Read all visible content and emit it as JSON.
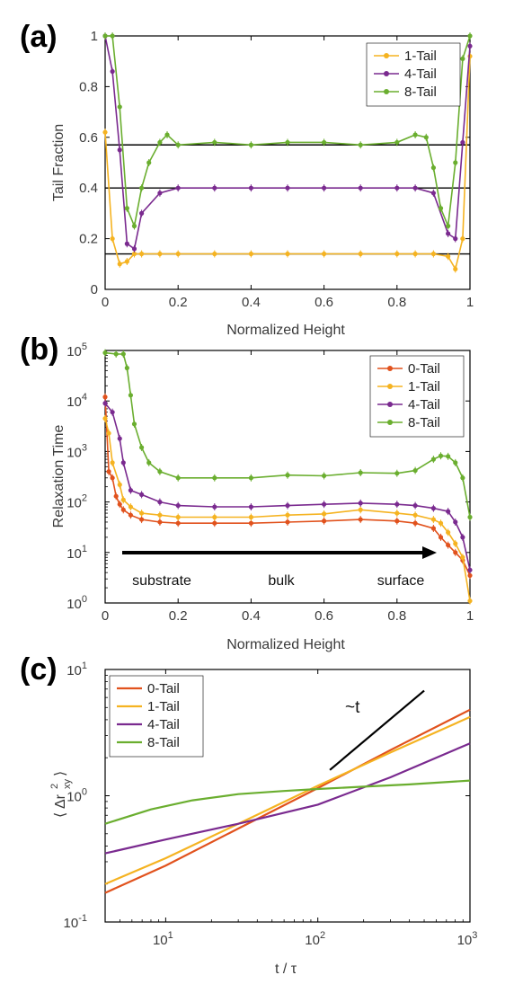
{
  "panels": [
    {
      "id": "a",
      "letter": "(a)",
      "type": "line",
      "xlabel": "Normalized Height",
      "ylabel": "Tail Fraction",
      "xlim": [
        0,
        1
      ],
      "ylim": [
        0,
        1
      ],
      "xscale": "linear",
      "yscale": "linear",
      "xticks": [
        0,
        0.2,
        0.4,
        0.6,
        0.8,
        1
      ],
      "xtick_labels": [
        "0",
        "0.2",
        "0.4",
        "0.6",
        "0.8",
        "1"
      ],
      "yticks": [
        0,
        0.2,
        0.4,
        0.6,
        0.8,
        1
      ],
      "ytick_labels": [
        "0",
        "0.2",
        "0.4",
        "0.6",
        "0.8",
        "1"
      ],
      "legend": "top-right",
      "hlines": [
        0.14,
        0.4,
        0.57
      ],
      "series": [
        {
          "name": "1-Tail",
          "color": "#F5B321",
          "x": [
            0,
            0.02,
            0.04,
            0.06,
            0.08,
            0.1,
            0.15,
            0.2,
            0.3,
            0.4,
            0.5,
            0.6,
            0.7,
            0.8,
            0.85,
            0.9,
            0.94,
            0.96,
            0.98,
            1.0
          ],
          "y": [
            0.62,
            0.2,
            0.1,
            0.11,
            0.14,
            0.14,
            0.14,
            0.14,
            0.14,
            0.14,
            0.14,
            0.14,
            0.14,
            0.14,
            0.14,
            0.14,
            0.13,
            0.08,
            0.2,
            0.92
          ]
        },
        {
          "name": "4-Tail",
          "color": "#7A2A8F",
          "x": [
            0,
            0.02,
            0.04,
            0.06,
            0.08,
            0.1,
            0.15,
            0.2,
            0.3,
            0.4,
            0.5,
            0.6,
            0.7,
            0.8,
            0.85,
            0.9,
            0.94,
            0.96,
            0.98,
            1.0
          ],
          "y": [
            1.0,
            0.86,
            0.55,
            0.18,
            0.16,
            0.3,
            0.38,
            0.4,
            0.4,
            0.4,
            0.4,
            0.4,
            0.4,
            0.4,
            0.4,
            0.38,
            0.22,
            0.2,
            0.58,
            0.96
          ]
        },
        {
          "name": "8-Tail",
          "color": "#6AAE2F",
          "x": [
            0,
            0.02,
            0.04,
            0.06,
            0.08,
            0.1,
            0.12,
            0.15,
            0.17,
            0.2,
            0.3,
            0.4,
            0.5,
            0.6,
            0.7,
            0.8,
            0.85,
            0.88,
            0.9,
            0.92,
            0.94,
            0.96,
            0.98,
            1.0
          ],
          "y": [
            1.0,
            1.0,
            0.72,
            0.32,
            0.25,
            0.4,
            0.5,
            0.58,
            0.61,
            0.57,
            0.58,
            0.57,
            0.58,
            0.58,
            0.57,
            0.58,
            0.61,
            0.6,
            0.48,
            0.32,
            0.25,
            0.5,
            0.91,
            1.0
          ]
        }
      ]
    },
    {
      "id": "b",
      "letter": "(b)",
      "type": "line",
      "xlabel": "Normalized Height",
      "ylabel": "Relaxation Time",
      "xlim": [
        0,
        1
      ],
      "ylim": [
        1,
        100000
      ],
      "xscale": "linear",
      "yscale": "log",
      "xticks": [
        0,
        0.2,
        0.4,
        0.6,
        0.8,
        1
      ],
      "xtick_labels": [
        "0",
        "0.2",
        "0.4",
        "0.6",
        "0.8",
        "1"
      ],
      "yticks": [
        1,
        10,
        100,
        1000,
        10000,
        100000
      ],
      "ytick_base": [
        "10",
        "10",
        "10",
        "10",
        "10",
        "10"
      ],
      "ytick_exp": [
        "0",
        "1",
        "2",
        "3",
        "4",
        "5"
      ],
      "legend": "top-right",
      "annotations": [
        "substrate",
        "bulk",
        "surface"
      ],
      "series": [
        {
          "name": "0-Tail",
          "color": "#E1521D",
          "x": [
            0,
            0.01,
            0.02,
            0.03,
            0.04,
            0.05,
            0.07,
            0.1,
            0.15,
            0.2,
            0.3,
            0.4,
            0.5,
            0.6,
            0.7,
            0.8,
            0.85,
            0.9,
            0.92,
            0.94,
            0.96,
            0.98,
            1.0
          ],
          "y": [
            12000,
            400,
            300,
            130,
            90,
            70,
            55,
            45,
            40,
            38,
            38,
            38,
            40,
            42,
            45,
            42,
            38,
            30,
            20,
            14,
            10,
            7,
            3.5
          ]
        },
        {
          "name": "1-Tail",
          "color": "#F5B321",
          "x": [
            0,
            0.01,
            0.02,
            0.04,
            0.05,
            0.07,
            0.1,
            0.15,
            0.2,
            0.3,
            0.4,
            0.5,
            0.6,
            0.7,
            0.8,
            0.85,
            0.9,
            0.92,
            0.94,
            0.96,
            0.98,
            1.0
          ],
          "y": [
            4500,
            2300,
            600,
            220,
            110,
            80,
            60,
            55,
            50,
            50,
            50,
            55,
            58,
            70,
            60,
            55,
            45,
            38,
            25,
            15,
            8,
            1.1
          ]
        },
        {
          "name": "4-Tail",
          "color": "#7A2A8F",
          "x": [
            0,
            0.02,
            0.04,
            0.05,
            0.07,
            0.1,
            0.15,
            0.2,
            0.3,
            0.4,
            0.5,
            0.6,
            0.7,
            0.8,
            0.85,
            0.9,
            0.94,
            0.96,
            0.98,
            1.0
          ],
          "y": [
            9000,
            6000,
            1800,
            600,
            170,
            140,
            100,
            85,
            80,
            80,
            85,
            90,
            95,
            90,
            85,
            75,
            65,
            40,
            20,
            4.5
          ]
        },
        {
          "name": "8-Tail",
          "color": "#6AAE2F",
          "x": [
            0,
            0.03,
            0.05,
            0.06,
            0.07,
            0.08,
            0.1,
            0.12,
            0.15,
            0.2,
            0.3,
            0.4,
            0.5,
            0.6,
            0.7,
            0.8,
            0.85,
            0.9,
            0.92,
            0.94,
            0.96,
            0.98,
            1.0
          ],
          "y": [
            90000,
            85000,
            85000,
            45000,
            13000,
            3500,
            1200,
            600,
            400,
            300,
            300,
            300,
            340,
            330,
            380,
            370,
            420,
            700,
            820,
            800,
            600,
            300,
            50
          ]
        }
      ]
    },
    {
      "id": "c",
      "letter": "(c)",
      "type": "line",
      "xlabel": "t / τ",
      "ylabel_pieces": {
        "open": "⟨",
        "delta": "Δr",
        "sup": "2",
        "sub": "xy",
        "close": "⟩"
      },
      "xlim": [
        4,
        1000
      ],
      "ylim": [
        0.1,
        10
      ],
      "xscale": "log",
      "yscale": "log",
      "xticks": [
        10,
        100,
        1000
      ],
      "xtick_base": [
        "10",
        "10",
        "10"
      ],
      "xtick_exp": [
        "1",
        "2",
        "3"
      ],
      "yticks": [
        0.1,
        1,
        10
      ],
      "ytick_base": [
        "10",
        "10",
        "10"
      ],
      "ytick_exp": [
        "-1",
        "0",
        "1"
      ],
      "legend": "top-left",
      "slope_label": "~t",
      "slope_line": {
        "x": [
          120,
          500
        ],
        "y": [
          1.6,
          6.8
        ]
      },
      "series": [
        {
          "name": "0-Tail",
          "color": "#E1521D",
          "x": [
            4,
            10,
            30,
            100,
            300,
            1000
          ],
          "y": [
            0.17,
            0.28,
            0.55,
            1.15,
            2.3,
            4.8
          ]
        },
        {
          "name": "1-Tail",
          "color": "#F5B321",
          "x": [
            4,
            10,
            30,
            100,
            300,
            1000
          ],
          "y": [
            0.2,
            0.32,
            0.6,
            1.2,
            2.2,
            4.2
          ]
        },
        {
          "name": "4-Tail",
          "color": "#7A2A8F",
          "x": [
            4,
            10,
            30,
            100,
            300,
            1000
          ],
          "y": [
            0.35,
            0.45,
            0.6,
            0.85,
            1.4,
            2.6
          ]
        },
        {
          "name": "8-Tail",
          "color": "#6AAE2F",
          "x": [
            4,
            8,
            15,
            30,
            60,
            100,
            200,
            400,
            1000
          ],
          "y": [
            0.6,
            0.78,
            0.92,
            1.03,
            1.09,
            1.13,
            1.18,
            1.23,
            1.32
          ]
        }
      ]
    }
  ],
  "chart_data": [
    {
      "type": "line",
      "title": "(a)",
      "xlabel": "Normalized Height",
      "ylabel": "Tail Fraction",
      "xlim": [
        0,
        1
      ],
      "ylim": [
        0,
        1
      ],
      "grid": false,
      "legend": "top-right",
      "reference_lines_y": [
        0.14,
        0.4,
        0.57
      ],
      "series": [
        {
          "name": "1-Tail",
          "x": [
            0,
            0.02,
            0.04,
            0.06,
            0.08,
            0.1,
            0.15,
            0.2,
            0.3,
            0.4,
            0.5,
            0.6,
            0.7,
            0.8,
            0.85,
            0.9,
            0.94,
            0.96,
            0.98,
            1.0
          ],
          "y": [
            0.62,
            0.2,
            0.1,
            0.11,
            0.14,
            0.14,
            0.14,
            0.14,
            0.14,
            0.14,
            0.14,
            0.14,
            0.14,
            0.14,
            0.14,
            0.14,
            0.13,
            0.08,
            0.2,
            0.92
          ]
        },
        {
          "name": "4-Tail",
          "x": [
            0,
            0.02,
            0.04,
            0.06,
            0.08,
            0.1,
            0.15,
            0.2,
            0.3,
            0.4,
            0.5,
            0.6,
            0.7,
            0.8,
            0.85,
            0.9,
            0.94,
            0.96,
            0.98,
            1.0
          ],
          "y": [
            1.0,
            0.86,
            0.55,
            0.18,
            0.16,
            0.3,
            0.38,
            0.4,
            0.4,
            0.4,
            0.4,
            0.4,
            0.4,
            0.4,
            0.4,
            0.38,
            0.22,
            0.2,
            0.58,
            0.96
          ]
        },
        {
          "name": "8-Tail",
          "x": [
            0,
            0.02,
            0.04,
            0.06,
            0.08,
            0.1,
            0.12,
            0.15,
            0.17,
            0.2,
            0.3,
            0.4,
            0.5,
            0.6,
            0.7,
            0.8,
            0.85,
            0.88,
            0.9,
            0.92,
            0.94,
            0.96,
            0.98,
            1.0
          ],
          "y": [
            1.0,
            1.0,
            0.72,
            0.32,
            0.25,
            0.4,
            0.5,
            0.58,
            0.61,
            0.57,
            0.58,
            0.57,
            0.58,
            0.58,
            0.57,
            0.58,
            0.61,
            0.6,
            0.48,
            0.32,
            0.25,
            0.5,
            0.91,
            1.0
          ]
        }
      ]
    },
    {
      "type": "line",
      "title": "(b)",
      "xlabel": "Normalized Height",
      "ylabel": "Relaxation Time",
      "xlim": [
        0,
        1
      ],
      "ylim": [
        1,
        100000
      ],
      "yscale": "log",
      "grid": false,
      "legend": "top-right",
      "annotations": [
        "substrate",
        "bulk",
        "surface"
      ],
      "series": [
        {
          "name": "0-Tail",
          "x": [
            0,
            0.01,
            0.02,
            0.03,
            0.04,
            0.05,
            0.07,
            0.1,
            0.15,
            0.2,
            0.3,
            0.4,
            0.5,
            0.6,
            0.7,
            0.8,
            0.85,
            0.9,
            0.92,
            0.94,
            0.96,
            0.98,
            1.0
          ],
          "y": [
            12000,
            400,
            300,
            130,
            90,
            70,
            55,
            45,
            40,
            38,
            38,
            38,
            40,
            42,
            45,
            42,
            38,
            30,
            20,
            14,
            10,
            7,
            3.5
          ]
        },
        {
          "name": "1-Tail",
          "x": [
            0,
            0.01,
            0.02,
            0.04,
            0.05,
            0.07,
            0.1,
            0.15,
            0.2,
            0.3,
            0.4,
            0.5,
            0.6,
            0.7,
            0.8,
            0.85,
            0.9,
            0.92,
            0.94,
            0.96,
            0.98,
            1.0
          ],
          "y": [
            4500,
            2300,
            600,
            220,
            110,
            80,
            60,
            55,
            50,
            50,
            50,
            55,
            58,
            70,
            60,
            55,
            45,
            38,
            25,
            15,
            8,
            1.1
          ]
        },
        {
          "name": "4-Tail",
          "x": [
            0,
            0.02,
            0.04,
            0.05,
            0.07,
            0.1,
            0.15,
            0.2,
            0.3,
            0.4,
            0.5,
            0.6,
            0.7,
            0.8,
            0.85,
            0.9,
            0.94,
            0.96,
            0.98,
            1.0
          ],
          "y": [
            9000,
            6000,
            1800,
            600,
            170,
            140,
            100,
            85,
            80,
            80,
            85,
            90,
            95,
            90,
            85,
            75,
            65,
            40,
            20,
            4.5
          ]
        },
        {
          "name": "8-Tail",
          "x": [
            0,
            0.03,
            0.05,
            0.06,
            0.07,
            0.08,
            0.1,
            0.12,
            0.15,
            0.2,
            0.3,
            0.4,
            0.5,
            0.6,
            0.7,
            0.8,
            0.85,
            0.9,
            0.92,
            0.94,
            0.96,
            0.98,
            1.0
          ],
          "y": [
            90000,
            85000,
            85000,
            45000,
            13000,
            3500,
            1200,
            600,
            400,
            300,
            300,
            300,
            340,
            330,
            380,
            370,
            420,
            700,
            820,
            800,
            600,
            300,
            50
          ]
        }
      ]
    },
    {
      "type": "line",
      "title": "(c)",
      "xlabel": "t / τ",
      "ylabel": "⟨Δr²xy⟩",
      "xlim": [
        4,
        1000
      ],
      "ylim": [
        0.1,
        10
      ],
      "xscale": "log",
      "yscale": "log",
      "grid": false,
      "legend": "top-left",
      "annotations": [
        "~t"
      ],
      "series": [
        {
          "name": "0-Tail",
          "x": [
            4,
            10,
            30,
            100,
            300,
            1000
          ],
          "y": [
            0.17,
            0.28,
            0.55,
            1.15,
            2.3,
            4.8
          ]
        },
        {
          "name": "1-Tail",
          "x": [
            4,
            10,
            30,
            100,
            300,
            1000
          ],
          "y": [
            0.2,
            0.32,
            0.6,
            1.2,
            2.2,
            4.2
          ]
        },
        {
          "name": "4-Tail",
          "x": [
            4,
            10,
            30,
            100,
            300,
            1000
          ],
          "y": [
            0.35,
            0.45,
            0.6,
            0.85,
            1.4,
            2.6
          ]
        },
        {
          "name": "8-Tail",
          "x": [
            4,
            8,
            15,
            30,
            60,
            100,
            200,
            400,
            1000
          ],
          "y": [
            0.6,
            0.78,
            0.92,
            1.03,
            1.09,
            1.13,
            1.18,
            1.23,
            1.32
          ]
        }
      ]
    }
  ]
}
